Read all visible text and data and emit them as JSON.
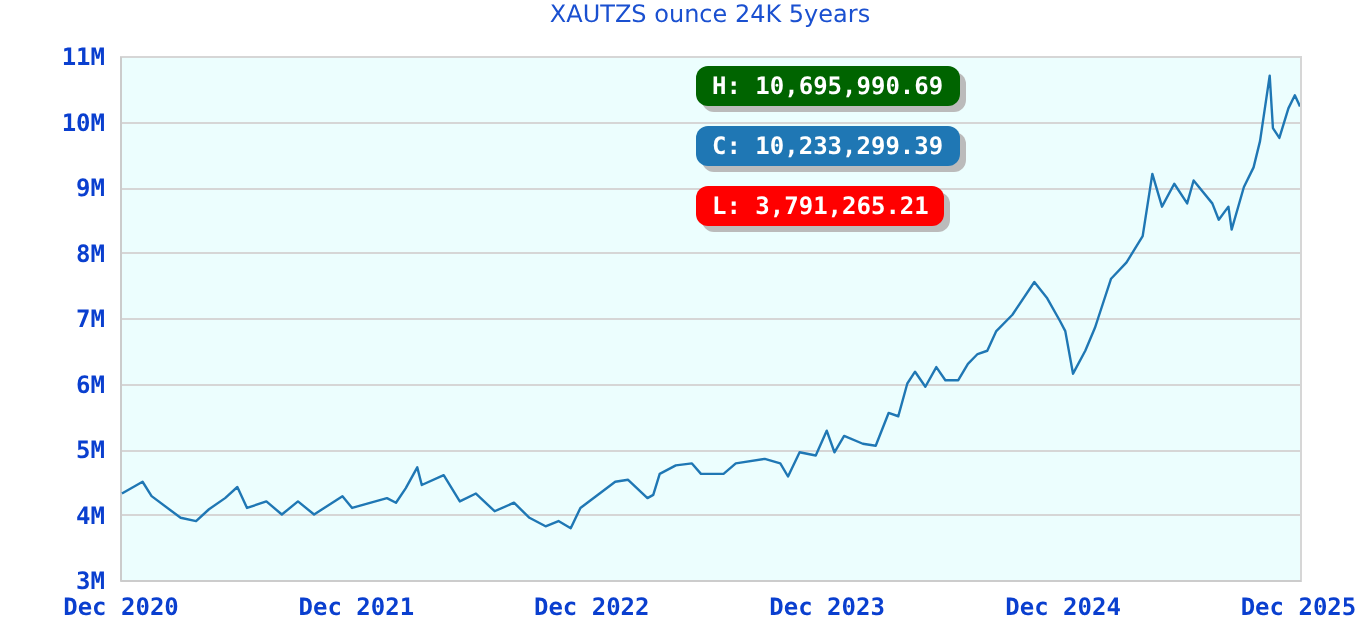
{
  "chart_data": {
    "type": "line",
    "title": "XAUTZS ounce 24K 5years",
    "x": [
      "2020-12-04",
      "2021-01-05",
      "2021-01-19",
      "2021-03-05",
      "2021-03-29",
      "2021-04-18",
      "2021-05-13",
      "2021-06-01",
      "2021-06-16",
      "2021-07-16",
      "2021-08-09",
      "2021-09-03",
      "2021-09-28",
      "2021-11-11",
      "2021-11-26",
      "2022-01-19",
      "2022-02-02",
      "2022-02-17",
      "2022-03-07",
      "2022-03-14",
      "2022-04-17",
      "2022-05-12",
      "2022-06-06",
      "2022-07-05",
      "2022-08-04",
      "2022-08-28",
      "2022-09-22",
      "2022-10-12",
      "2022-10-31",
      "2022-11-15",
      "2023-01-08",
      "2023-01-28",
      "2023-02-27",
      "2023-03-08",
      "2023-03-18",
      "2023-04-12",
      "2023-05-07",
      "2023-05-21",
      "2023-06-25",
      "2023-07-14",
      "2023-08-28",
      "2023-09-21",
      "2023-10-03",
      "2023-10-21",
      "2023-11-15",
      "2023-12-02",
      "2023-12-14",
      "2023-12-29",
      "2024-01-27",
      "2024-02-16",
      "2024-03-07",
      "2024-03-22",
      "2024-04-05",
      "2024-04-17",
      "2024-05-03",
      "2024-05-20",
      "2024-06-03",
      "2024-06-23",
      "2024-07-08",
      "2024-07-23",
      "2024-08-07",
      "2024-08-21",
      "2024-09-15",
      "2024-10-19",
      "2024-11-08",
      "2024-11-28",
      "2024-12-06",
      "2024-12-18",
      "2025-01-06",
      "2025-01-21",
      "2025-01-26",
      "2025-02-15",
      "2025-03-11",
      "2025-04-05",
      "2025-04-20",
      "2025-05-05",
      "2025-05-24",
      "2025-06-13",
      "2025-06-23",
      "2025-07-22",
      "2025-08-01",
      "2025-08-16",
      "2025-08-21",
      "2025-09-09",
      "2025-09-24",
      "2025-10-04",
      "2025-10-19",
      "2025-10-24",
      "2025-11-03",
      "2025-11-17",
      "2025-11-27",
      "2025-12-05"
    ],
    "series": [
      {
        "color": "#1f77b4",
        "values": [
          4320000,
          4500000,
          4280000,
          3950000,
          3900000,
          4080000,
          4250000,
          4420000,
          4100000,
          4200000,
          4000000,
          4200000,
          4000000,
          4280000,
          4100000,
          4250000,
          4180000,
          4400000,
          4720000,
          4450000,
          4600000,
          4200000,
          4320000,
          4050000,
          4180000,
          3950000,
          3820000,
          3900000,
          3790000,
          4100000,
          4500000,
          4530000,
          4250000,
          4300000,
          4620000,
          4750000,
          4780000,
          4620000,
          4620000,
          4780000,
          4850000,
          4780000,
          4580000,
          4950000,
          4900000,
          5280000,
          4950000,
          5200000,
          5080000,
          5050000,
          5550000,
          5500000,
          6000000,
          6180000,
          5950000,
          6250000,
          6050000,
          6050000,
          6300000,
          6450000,
          6500000,
          6800000,
          7050000,
          7550000,
          7300000,
          6950000,
          6800000,
          6150000,
          6500000,
          6850000,
          7000000,
          7600000,
          7850000,
          8250000,
          9200000,
          8700000,
          9050000,
          8750000,
          9100000,
          8750000,
          8500000,
          8700000,
          8350000,
          9000000,
          9300000,
          9700000,
          10700000,
          9900000,
          9750000,
          10200000,
          10400000,
          10230000
        ]
      }
    ],
    "xlim": [
      "2020-12-01",
      "2025-12-05"
    ],
    "xticks": [
      {
        "value": "2020-12-01",
        "label": "Dec 2020"
      },
      {
        "value": "2021-12-01",
        "label": "Dec 2021"
      },
      {
        "value": "2022-12-01",
        "label": "Dec 2022"
      },
      {
        "value": "2023-12-01",
        "label": "Dec 2023"
      },
      {
        "value": "2024-12-01",
        "label": "Dec 2024"
      },
      {
        "value": "2025-12-01",
        "label": "Dec 2025"
      }
    ],
    "ylim": [
      3000000,
      11000000
    ],
    "yticks": [
      {
        "value": 3000000,
        "label": "3M"
      },
      {
        "value": 4000000,
        "label": "4M"
      },
      {
        "value": 5000000,
        "label": "5M"
      },
      {
        "value": 6000000,
        "label": "6M"
      },
      {
        "value": 7000000,
        "label": "7M"
      },
      {
        "value": 8000000,
        "label": "8M"
      },
      {
        "value": 9000000,
        "label": "9M"
      },
      {
        "value": 10000000,
        "label": "10M"
      },
      {
        "value": 11000000,
        "label": "11M"
      }
    ],
    "grid": "y",
    "annotations": [
      "H: 10,695,990.69",
      "C: 10,233,299.39",
      "L: 3,791,265.21"
    ]
  }
}
